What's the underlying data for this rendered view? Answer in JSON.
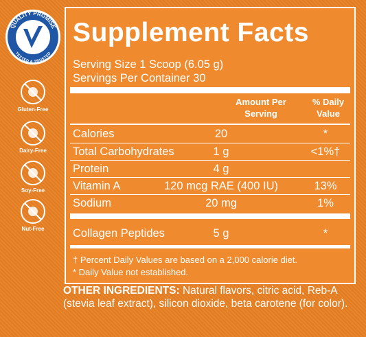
{
  "badges": {
    "quality": {
      "top": "QUALITY PROMISE",
      "bottom": "TESTED & TRUSTED"
    },
    "items": [
      "Gluten-Free",
      "Dairy-Free",
      "Soy-Free",
      "Nut-Free"
    ]
  },
  "facts": {
    "title": "Supplement Facts",
    "serving_size": "Serving Size 1 Scoop (6.05 g)",
    "servings_per_container": "Servings Per Container 30",
    "header": {
      "amount": "Amount Per Serving",
      "daily_value": "% Daily Value"
    },
    "rows": [
      {
        "name": "Calories",
        "amount": "20",
        "dv": "*"
      },
      {
        "name": "Total Carbohydrates",
        "amount": "1 g",
        "dv": "<1%†"
      },
      {
        "name": "Protein",
        "amount": "4 g"
      },
      {
        "name": "Vitamin A",
        "amount": "120 mcg RAE (400 IU)",
        "dv": "13%"
      },
      {
        "name": "Sodium",
        "amount": "20 mg",
        "dv": "1%"
      },
      {
        "name": "Collagen Peptides",
        "amount": "5 g",
        "dv": "*"
      }
    ],
    "footnotes": [
      "† Percent Daily Values are based on a 2,000 calorie diet.",
      "* Daily Value not established."
    ]
  },
  "ingredients": {
    "label": "OTHER INGREDIENTS:",
    "text": "Natural flavors, citric acid, Reb-A (stevia leaf extract), silicon dioxide, beta carotene (for color)."
  }
}
